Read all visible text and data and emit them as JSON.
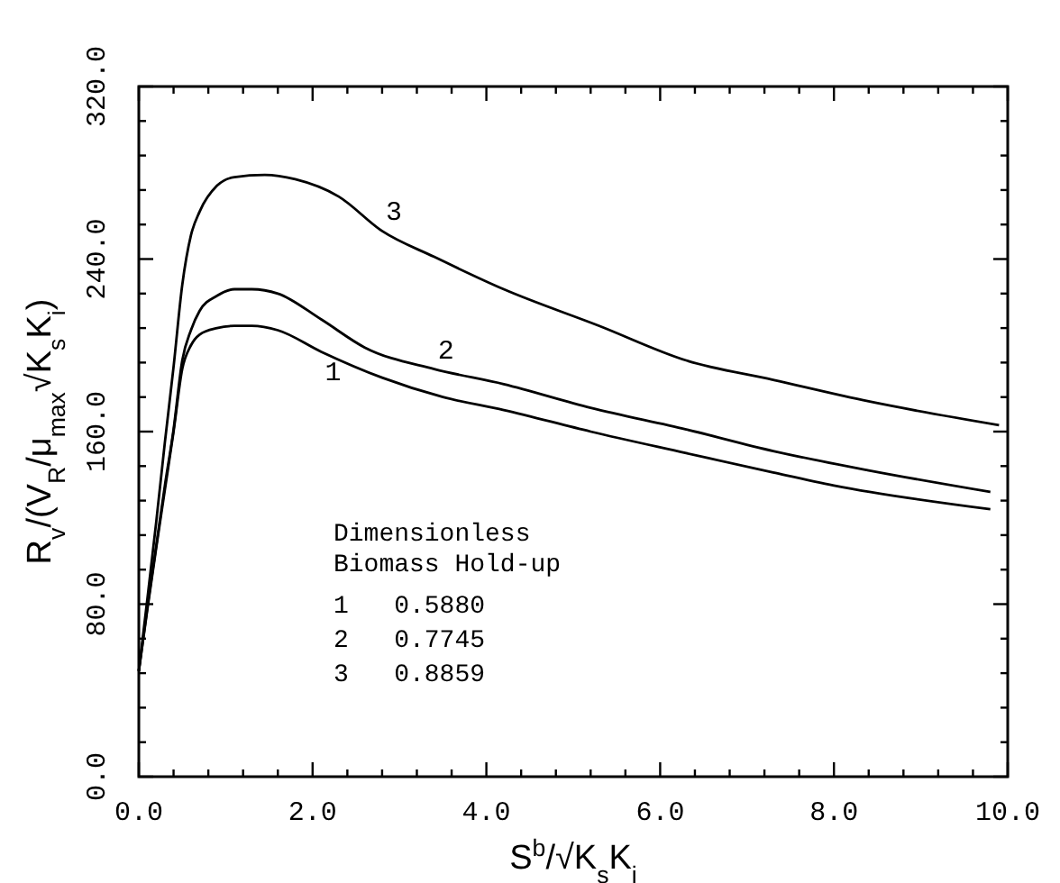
{
  "chart_data": {
    "type": "line",
    "xlabel": "S$^{b}$/√K$_{s}$K$_{i}$",
    "ylabel": "R$_{v}$/(V$_{R}$/μ$_{max}$√K$_{s}$K$_{i}$)",
    "legend_title": "Dimensionless Biomass Hold-up",
    "xlim": [
      0,
      10
    ],
    "ylim": [
      0,
      320
    ],
    "xticks": [
      {
        "value": 0,
        "label": "0.0"
      },
      {
        "value": 0.4,
        "label": null
      },
      {
        "value": 0.8,
        "label": null
      },
      {
        "value": 1.2,
        "label": null
      },
      {
        "value": 1.6,
        "label": null
      },
      {
        "value": 2,
        "label": "2.0"
      },
      {
        "value": 2.4,
        "label": null
      },
      {
        "value": 2.8,
        "label": null
      },
      {
        "value": 3.2,
        "label": null
      },
      {
        "value": 3.6,
        "label": null
      },
      {
        "value": 4,
        "label": "4.0"
      },
      {
        "value": 4.4,
        "label": null
      },
      {
        "value": 4.8,
        "label": null
      },
      {
        "value": 5.2,
        "label": null
      },
      {
        "value": 5.6,
        "label": null
      },
      {
        "value": 6,
        "label": "6.0"
      },
      {
        "value": 6.4,
        "label": null
      },
      {
        "value": 6.8,
        "label": null
      },
      {
        "value": 7.2,
        "label": null
      },
      {
        "value": 7.6,
        "label": null
      },
      {
        "value": 8,
        "label": "8.0"
      },
      {
        "value": 8.4,
        "label": null
      },
      {
        "value": 8.8,
        "label": null
      },
      {
        "value": 9.2,
        "label": null
      },
      {
        "value": 9.6,
        "label": null
      },
      {
        "value": 10,
        "label": "10.0"
      }
    ],
    "yticks": [
      {
        "value": 0,
        "label": "0.0"
      },
      {
        "value": 16,
        "label": null
      },
      {
        "value": 32,
        "label": null
      },
      {
        "value": 48,
        "label": null
      },
      {
        "value": 64,
        "label": null
      },
      {
        "value": 80,
        "label": "80.0"
      },
      {
        "value": 96,
        "label": null
      },
      {
        "value": 112,
        "label": null
      },
      {
        "value": 128,
        "label": null
      },
      {
        "value": 144,
        "label": null
      },
      {
        "value": 160,
        "label": "160.0"
      },
      {
        "value": 176,
        "label": null
      },
      {
        "value": 192,
        "label": null
      },
      {
        "value": 208,
        "label": null
      },
      {
        "value": 224,
        "label": null
      },
      {
        "value": 240,
        "label": "240.0"
      },
      {
        "value": 256,
        "label": null
      },
      {
        "value": 272,
        "label": null
      },
      {
        "value": 288,
        "label": null
      },
      {
        "value": 304,
        "label": null
      },
      {
        "value": 320,
        "label": "320.0"
      }
    ],
    "grid": false,
    "marker": "none",
    "line_style": "solid",
    "series": [
      {
        "name": "1",
        "color": "#000000",
        "x": [
          0,
          0.1,
          0.2,
          0.3,
          0.4,
          0.5,
          0.6,
          0.7,
          0.9,
          1.1,
          1.3,
          1.6,
          2.1,
          2.8,
          3.5,
          4.2,
          5.2,
          6.3,
          7.3,
          8.0,
          9.8
        ],
        "values": [
          49,
          78,
          106,
          133,
          160,
          189,
          200,
          205,
          208,
          209,
          209,
          207,
          197,
          185,
          176,
          170,
          160,
          150,
          141,
          135,
          124
        ]
      },
      {
        "name": "2",
        "color": "#000000",
        "x": [
          0,
          0.1,
          0.2,
          0.3,
          0.4,
          0.5,
          0.6,
          0.7,
          0.9,
          1.1,
          1.3,
          1.6,
          2.1,
          2.6,
          3.4,
          4.2,
          5.2,
          6.3,
          7.3,
          8.4,
          9.8
        ],
        "values": [
          49,
          79,
          107,
          135,
          161,
          193,
          207,
          216,
          223,
          226,
          226,
          224,
          212,
          199,
          189,
          182,
          171,
          161,
          151,
          142,
          132
        ]
      },
      {
        "name": "3",
        "color": "#000000",
        "x": [
          0,
          0.1,
          0.2,
          0.3,
          0.4,
          0.5,
          0.6,
          0.7,
          0.9,
          1.1,
          1.45,
          1.8,
          2.3,
          2.8,
          3.4,
          4.2,
          5.3,
          6.3,
          7.3,
          8.4,
          9.9
        ],
        "values": [
          49,
          83,
          118,
          155,
          190,
          228,
          251,
          262,
          274,
          278,
          279,
          277,
          269,
          253,
          241,
          226,
          209,
          193,
          184,
          174,
          163
        ]
      }
    ],
    "annotations": [
      "1   0.5880",
      "2   0.7745",
      "3   0.8859"
    ]
  }
}
